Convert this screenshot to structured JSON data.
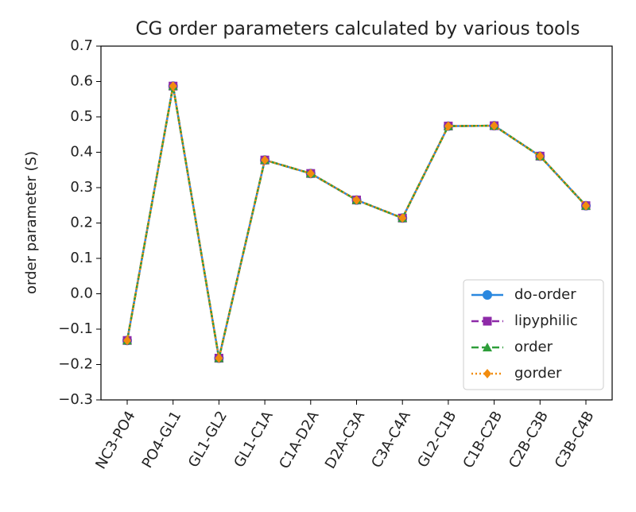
{
  "chart_data": {
    "type": "line",
    "title": "CG order parameters calculated by various tools",
    "y_label": "order parameter (S)",
    "categories": [
      "NC3-PO4",
      "PO4-GL1",
      "GL1-GL2",
      "GL1-C1A",
      "C1A-D2A",
      "D2A-C3A",
      "C3A-C4A",
      "GL2-C1B",
      "C1B-C2B",
      "C2B-C3B",
      "C3B-C4B"
    ],
    "series": [
      {
        "name": "do-order",
        "color": "#2a88df",
        "dash": "solid",
        "marker": "circle",
        "values": [
          -0.132,
          0.587,
          -0.182,
          0.378,
          0.34,
          0.265,
          0.214,
          0.474,
          0.475,
          0.389,
          0.249
        ]
      },
      {
        "name": "lipyphilic",
        "color": "#8e2aa8",
        "dash": "dashed",
        "marker": "square",
        "values": [
          -0.132,
          0.587,
          -0.182,
          0.378,
          0.34,
          0.265,
          0.214,
          0.474,
          0.475,
          0.389,
          0.249
        ]
      },
      {
        "name": "order",
        "color": "#2e9e3a",
        "dash": "dashed",
        "marker": "triangle",
        "values": [
          -0.132,
          0.587,
          -0.182,
          0.378,
          0.34,
          0.265,
          0.214,
          0.474,
          0.475,
          0.389,
          0.249
        ]
      },
      {
        "name": "gorder",
        "color": "#f28c0f",
        "dash": "dotted",
        "marker": "diamond",
        "values": [
          -0.132,
          0.587,
          -0.182,
          0.378,
          0.34,
          0.265,
          0.214,
          0.474,
          0.475,
          0.389,
          0.249
        ]
      }
    ],
    "ylim": [
      -0.3,
      0.7
    ],
    "yticks": [
      {
        "value": -0.3,
        "label": "−0.3"
      },
      {
        "value": -0.2,
        "label": "−0.2"
      },
      {
        "value": -0.1,
        "label": "−0.1"
      },
      {
        "value": 0,
        "label": "0.0"
      },
      0.1,
      0.2,
      0.3,
      0.4,
      0.5,
      0.6,
      0.7
    ],
    "legend": "lower right"
  }
}
